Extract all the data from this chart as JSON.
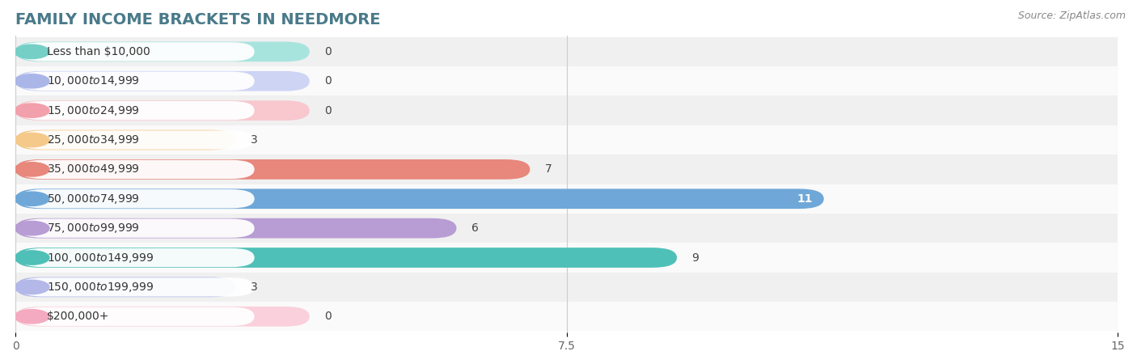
{
  "title": "FAMILY INCOME BRACKETS IN NEEDMORE",
  "source": "Source: ZipAtlas.com",
  "categories": [
    "Less than $10,000",
    "$10,000 to $14,999",
    "$15,000 to $24,999",
    "$25,000 to $34,999",
    "$35,000 to $49,999",
    "$50,000 to $74,999",
    "$75,000 to $99,999",
    "$100,000 to $149,999",
    "$150,000 to $199,999",
    "$200,000+"
  ],
  "values": [
    0,
    0,
    0,
    3,
    7,
    11,
    6,
    9,
    3,
    0
  ],
  "bar_colors": [
    "#76cfc6",
    "#abb6e8",
    "#f2a0ab",
    "#f5c98a",
    "#e8877c",
    "#6fa8d8",
    "#b89cd4",
    "#4fc0b8",
    "#b3b8e8",
    "#f4aac0"
  ],
  "bar_colors_light": [
    "#a8e4de",
    "#cdd4f4",
    "#f8c8ce",
    "#fae0b8",
    "#f4b8b0",
    "#a4c8ec",
    "#d4c4e8",
    "#90d8d4",
    "#d4d8f4",
    "#fad0dc"
  ],
  "xlim": [
    0,
    15
  ],
  "xticks": [
    0,
    7.5,
    15
  ],
  "background_color": "#ffffff",
  "row_bg_even": "#f0f0f0",
  "row_bg_odd": "#fafafa",
  "title_fontsize": 14,
  "source_fontsize": 9,
  "tick_fontsize": 10,
  "bar_label_fontsize": 10,
  "category_fontsize": 10
}
